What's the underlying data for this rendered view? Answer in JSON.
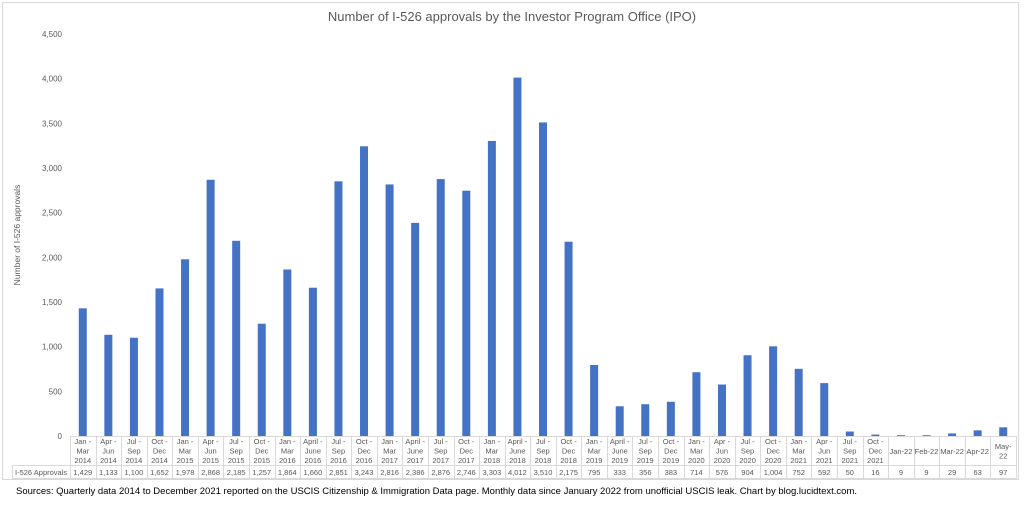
{
  "chart_data": {
    "type": "bar",
    "title": "Number of I-526 approvals by the Investor Program Office (IPO)",
    "xlabel": "",
    "ylabel": "Number of I-526 approvals",
    "ylim": [
      0,
      4500
    ],
    "yticks": [
      0,
      500,
      1000,
      1500,
      2000,
      2500,
      3000,
      3500,
      4000,
      4500
    ],
    "ytick_labels": [
      "0",
      "500",
      "1,000",
      "1,500",
      "2,000",
      "2,500",
      "3,000",
      "3,500",
      "4,000",
      "4,500"
    ],
    "grid": false,
    "legend": "none",
    "bar_color": "#4472c4",
    "series_name": "I-526 Approvals",
    "categories": [
      [
        "Jan -",
        "Mar",
        "2014"
      ],
      [
        "Apr -",
        "Jun",
        "2014"
      ],
      [
        "Jul -",
        "Sep",
        "2014"
      ],
      [
        "Oct -",
        "Dec",
        "2014"
      ],
      [
        "Jan -",
        "Mar",
        "2015"
      ],
      [
        "Apr -",
        "Jun",
        "2015"
      ],
      [
        "Jul -",
        "Sep",
        "2015"
      ],
      [
        "Oct -",
        "Dec",
        "2015"
      ],
      [
        "Jan -",
        "Mar",
        "2016"
      ],
      [
        "April -",
        "June",
        "2016"
      ],
      [
        "Jul -",
        "Sep",
        "2016"
      ],
      [
        "Oct -",
        "Dec",
        "2016"
      ],
      [
        "Jan -",
        "Mar",
        "2017"
      ],
      [
        "April -",
        "June",
        "2017"
      ],
      [
        "Jul -",
        "Sep",
        "2017"
      ],
      [
        "Oct -",
        "Dec",
        "2017"
      ],
      [
        "Jan -",
        "Mar",
        "2018"
      ],
      [
        "April -",
        "June",
        "2018"
      ],
      [
        "Jul -",
        "Sep",
        "2018"
      ],
      [
        "Oct -",
        "Dec",
        "2018"
      ],
      [
        "Jan -",
        "Mar",
        "2019"
      ],
      [
        "April -",
        "June",
        "2019"
      ],
      [
        "Jul -",
        "Sep",
        "2019"
      ],
      [
        "Oct -",
        "Dec",
        "2019"
      ],
      [
        "Jan -",
        "Mar",
        "2020"
      ],
      [
        "Apr -",
        "Jun",
        "2020"
      ],
      [
        "Jul -",
        "Sep",
        "2020"
      ],
      [
        "Oct -",
        "Dec",
        "2020"
      ],
      [
        "Jan -",
        "Mar",
        "2021"
      ],
      [
        "Apr -",
        "Jun",
        "2021"
      ],
      [
        "Jul -",
        "Sep",
        "2021"
      ],
      [
        "Oct -",
        "Dec",
        "2021"
      ],
      [
        "Jan-22"
      ],
      [
        "Feb-22"
      ],
      [
        "Mar-22"
      ],
      [
        "Apr-22"
      ],
      [
        "May-",
        "22"
      ]
    ],
    "values": [
      1429,
      1133,
      1100,
      1652,
      1978,
      2868,
      2185,
      1257,
      1864,
      1660,
      2851,
      3243,
      2816,
      2386,
      2876,
      2746,
      3303,
      4012,
      3510,
      2175,
      795,
      333,
      356,
      383,
      714,
      576,
      904,
      1004,
      752,
      592,
      50,
      16,
      9,
      9,
      29,
      63,
      97
    ],
    "value_labels": [
      "1,429",
      "1,133",
      "1,100",
      "1,652",
      "1,978",
      "2,868",
      "2,185",
      "1,257",
      "1,864",
      "1,660",
      "2,851",
      "3,243",
      "2,816",
      "2,386",
      "2,876",
      "2,746",
      "3,303",
      "4,012",
      "3,510",
      "2,175",
      "795",
      "333",
      "356",
      "383",
      "714",
      "576",
      "904",
      "1,004",
      "752",
      "592",
      "50",
      "16",
      "9",
      "9",
      "29",
      "63",
      "97"
    ]
  },
  "source_note": "Sources: Quarterly data 2014 to December 2021 reported on the USCIS Citizenship & Immigration Data page. Monthly data since January 2022 from unofficial USCIS leak. Chart by blog.lucidtext.com."
}
